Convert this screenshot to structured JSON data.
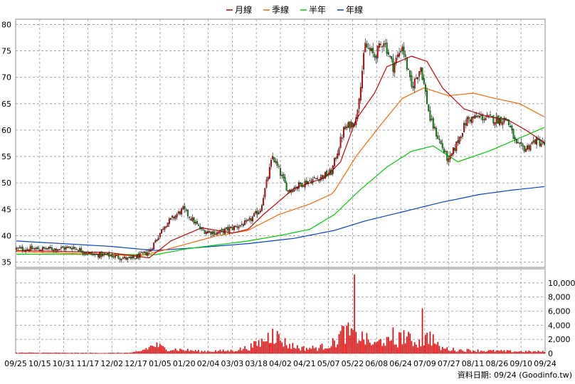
{
  "chart_data": {
    "type": "candlestick",
    "legend": [
      {
        "name": "月線",
        "color": "#cc0000"
      },
      {
        "name": "季線",
        "color": "#ff6600"
      },
      {
        "name": "半年",
        "color": "#00cc00"
      },
      {
        "name": "年線",
        "color": "#0044cc"
      }
    ],
    "price_axis": {
      "ylim": [
        34,
        81
      ],
      "ticks": [
        35,
        40,
        45,
        50,
        55,
        60,
        65,
        70,
        75,
        80
      ]
    },
    "volume_axis": {
      "ylim": [
        0,
        12000
      ],
      "ticks": [
        0,
        2000,
        4000,
        6000,
        8000,
        10000
      ],
      "tick_labels": [
        "0",
        "2,000",
        "4,000",
        "6,000",
        "8,000",
        "10,000"
      ]
    },
    "x_labels": [
      "09/25",
      "10/15",
      "10/31",
      "11/17",
      "12/02",
      "12/17",
      "01/05",
      "01/20",
      "02/04",
      "03/03",
      "03/18",
      "04/02",
      "04/21",
      "05/07",
      "05/22",
      "06/08",
      "06/24",
      "07/09",
      "07/27",
      "08/11",
      "08/26",
      "09/10",
      "09/24"
    ],
    "grid": true,
    "footer": "資料日期: 09/24  (Goodinfo.tw)",
    "close_anchors": [
      [
        0,
        37.5
      ],
      [
        14,
        37.5
      ],
      [
        25,
        37.5
      ],
      [
        37,
        37.8
      ],
      [
        48,
        36.5
      ],
      [
        62,
        36.2
      ],
      [
        74,
        35.5
      ],
      [
        86,
        37
      ],
      [
        96,
        42
      ],
      [
        108,
        45
      ],
      [
        120,
        41
      ],
      [
        130,
        40.5
      ],
      [
        140,
        41.5
      ],
      [
        150,
        42.5
      ],
      [
        158,
        45
      ],
      [
        166,
        55
      ],
      [
        176,
        48.5
      ],
      [
        186,
        50
      ],
      [
        196,
        51
      ],
      [
        204,
        52
      ],
      [
        212,
        60
      ],
      [
        220,
        62
      ],
      [
        226,
        76
      ],
      [
        232,
        74
      ],
      [
        238,
        77
      ],
      [
        244,
        72
      ],
      [
        250,
        76
      ],
      [
        256,
        68
      ],
      [
        262,
        72
      ],
      [
        268,
        62
      ],
      [
        274,
        58
      ],
      [
        280,
        54
      ],
      [
        286,
        58
      ],
      [
        292,
        62
      ],
      [
        300,
        62.5
      ],
      [
        310,
        62
      ],
      [
        318,
        62
      ],
      [
        324,
        57
      ],
      [
        330,
        56.5
      ],
      [
        336,
        58
      ],
      [
        342,
        57.3
      ]
    ],
    "vol_anchors": [
      [
        0,
        100
      ],
      [
        20,
        100
      ],
      [
        40,
        80
      ],
      [
        60,
        80
      ],
      [
        75,
        100
      ],
      [
        80,
        300
      ],
      [
        90,
        1200
      ],
      [
        96,
        700
      ],
      [
        108,
        500
      ],
      [
        120,
        300
      ],
      [
        140,
        400
      ],
      [
        150,
        800
      ],
      [
        158,
        1500
      ],
      [
        166,
        2800
      ],
      [
        176,
        1200
      ],
      [
        186,
        700
      ],
      [
        196,
        800
      ],
      [
        206,
        1500
      ],
      [
        212,
        3000
      ],
      [
        220,
        2600
      ],
      [
        226,
        2000
      ],
      [
        232,
        1200
      ],
      [
        238,
        2000
      ],
      [
        244,
        1100
      ],
      [
        250,
        2500
      ],
      [
        256,
        1800
      ],
      [
        262,
        1500
      ],
      [
        268,
        2500
      ],
      [
        274,
        800
      ],
      [
        284,
        500
      ],
      [
        300,
        400
      ],
      [
        320,
        300
      ],
      [
        342,
        250
      ]
    ],
    "vol_spikes": [
      [
        219,
        11200
      ],
      [
        244,
        3700
      ],
      [
        263,
        6400
      ],
      [
        251,
        3300
      ],
      [
        268,
        3100
      ],
      [
        166,
        3500
      ],
      [
        210,
        3200
      ]
    ],
    "ma_anchors": {
      "month": [
        [
          0,
          37.2
        ],
        [
          60,
          36.8
        ],
        [
          86,
          35.8
        ],
        [
          100,
          39
        ],
        [
          120,
          41.5
        ],
        [
          140,
          40.5
        ],
        [
          150,
          41.2
        ],
        [
          160,
          44
        ],
        [
          180,
          49
        ],
        [
          200,
          51
        ],
        [
          210,
          54
        ],
        [
          220,
          62
        ],
        [
          232,
          67
        ],
        [
          240,
          72
        ],
        [
          256,
          74
        ],
        [
          266,
          73
        ],
        [
          276,
          68
        ],
        [
          290,
          64
        ],
        [
          306,
          62.5
        ],
        [
          318,
          62
        ],
        [
          330,
          60
        ],
        [
          342,
          57.6
        ]
      ],
      "season": [
        [
          0,
          37
        ],
        [
          80,
          36.2
        ],
        [
          96,
          37.3
        ],
        [
          130,
          40
        ],
        [
          150,
          41
        ],
        [
          170,
          44
        ],
        [
          190,
          46
        ],
        [
          205,
          48
        ],
        [
          220,
          55
        ],
        [
          236,
          61
        ],
        [
          250,
          66
        ],
        [
          264,
          68
        ],
        [
          280,
          66.5
        ],
        [
          296,
          67
        ],
        [
          310,
          66
        ],
        [
          326,
          65
        ],
        [
          342,
          62.5
        ]
      ],
      "half": [
        [
          0,
          36.5
        ],
        [
          90,
          36.4
        ],
        [
          110,
          37.5
        ],
        [
          150,
          39
        ],
        [
          170,
          40
        ],
        [
          190,
          41.2
        ],
        [
          206,
          44
        ],
        [
          222,
          48.5
        ],
        [
          240,
          53
        ],
        [
          256,
          56
        ],
        [
          270,
          57
        ],
        [
          286,
          54
        ],
        [
          306,
          56
        ],
        [
          326,
          58.5
        ],
        [
          342,
          60.5
        ]
      ],
      "year": [
        [
          0,
          39
        ],
        [
          60,
          38
        ],
        [
          90,
          37.2
        ],
        [
          120,
          37.8
        ],
        [
          150,
          38.5
        ],
        [
          180,
          39.5
        ],
        [
          206,
          41
        ],
        [
          226,
          42.8
        ],
        [
          250,
          44.5
        ],
        [
          275,
          46.3
        ],
        [
          300,
          47.8
        ],
        [
          320,
          48.6
        ],
        [
          342,
          49.3
        ]
      ]
    }
  }
}
